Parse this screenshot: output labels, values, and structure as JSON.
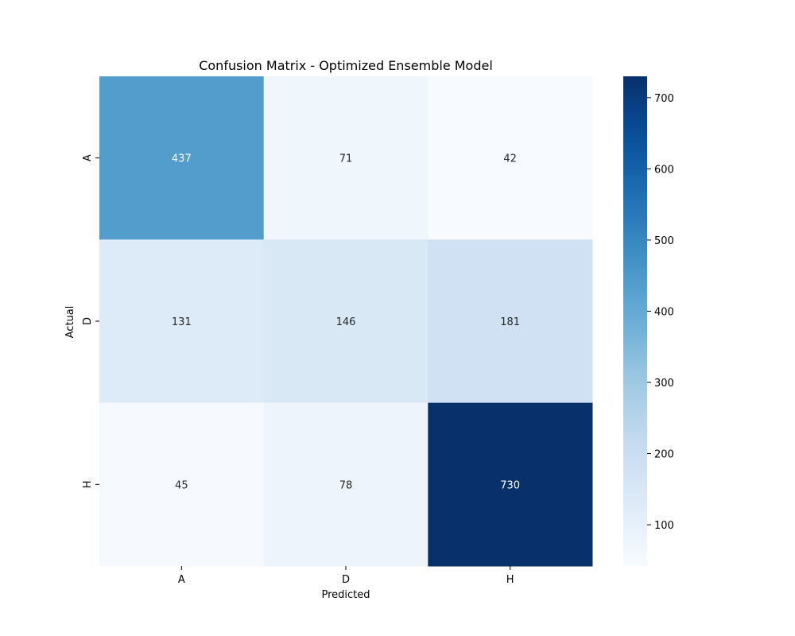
{
  "chart_data": {
    "type": "heatmap",
    "title": "Confusion Matrix - Optimized Ensemble Model",
    "xlabel": "Predicted",
    "ylabel": "Actual",
    "x_categories": [
      "A",
      "D",
      "H"
    ],
    "y_categories": [
      "A",
      "D",
      "H"
    ],
    "values": [
      [
        437,
        71,
        42
      ],
      [
        131,
        146,
        181
      ],
      [
        45,
        78,
        730
      ]
    ],
    "colormap": "Blues",
    "value_range": [
      42,
      730
    ],
    "colorbar_ticks": [
      100,
      200,
      300,
      400,
      500,
      600,
      700
    ],
    "annotations": true,
    "grid": false
  }
}
